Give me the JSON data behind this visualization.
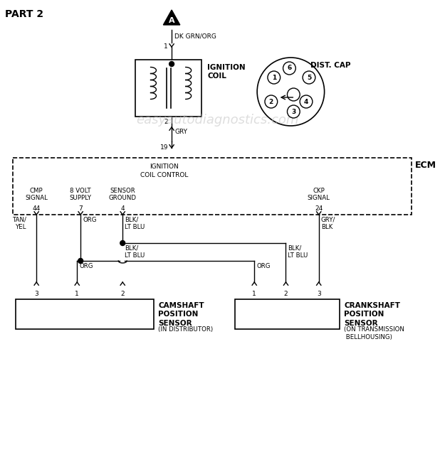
{
  "title": "PART 2",
  "bg_color": "#ffffff",
  "line_color": "#000000",
  "watermark": "easyautodiagnostics.com",
  "watermark_color": "#c8c8c8",
  "wire_dk_grn_org": "DK GRN/ORG",
  "pin1_top": "1",
  "ignition_coil_label": "IGNITION\nCOIL",
  "dist_cap_label": "DIST. CAP",
  "pin2_bottom": "2",
  "wire_gry": "GRY",
  "pin19": "19",
  "ecm_label": "ECM",
  "ecm_box_label": "IGNITION\nCOIL CONTROL",
  "cmp_signal": "CMP\nSIGNAL",
  "volt_supply": "8 VOLT\nSUPPLY",
  "sensor_ground": "SENSOR\nGROUND",
  "ckp_signal": "CKP\nSIGNAL",
  "pin44": "44",
  "pin7": "7",
  "pin4": "4",
  "pin24": "24",
  "wire_tan_yel": "TAN/\nYEL",
  "wire_org1": "ORG",
  "wire_blk_lt_blu1": "BLK/\nLT BLU",
  "wire_gry_blk": "GRY/\nBLK",
  "wire_org2": "ORG",
  "wire_blk_lt_blu2": "BLK/\nLT BLU",
  "cam_sensor_label": "CAMSHAFT\nPOSITION\nSENSOR",
  "cam_sensor_sub": "(IN DISTRIBUTOR)",
  "crank_sensor_label": "CRANKSHAFT\nPOSITION\nSENSOR",
  "crank_sensor_sub": "(ON TRANSMISSION\n BELLHOUSING)"
}
